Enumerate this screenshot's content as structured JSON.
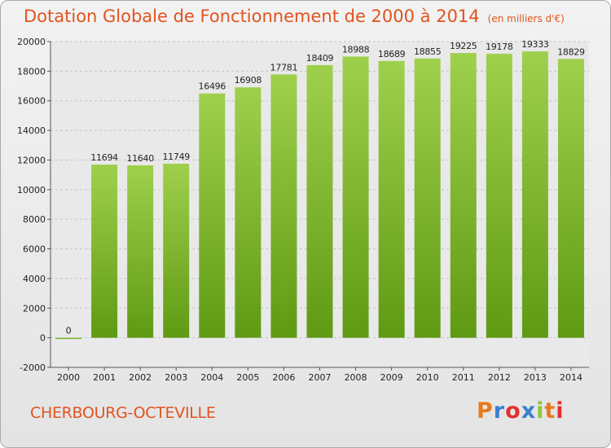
{
  "header": {
    "title": "Dotation Globale de Fonctionnement de 2000 à 2014",
    "unit": "(en milliers d'€)"
  },
  "footer": {
    "city": "CHERBOURG-OCTEVILLE",
    "logo": "Proxiti",
    "logo_colors": [
      "#e87a1e",
      "#3a7fd0",
      "#e22f2f",
      "#3a7fd0",
      "#8cc63f",
      "#e87a1e",
      "#e22f2f"
    ]
  },
  "colors": {
    "bar_top": "#9fd04d",
    "bar_bottom": "#5f9a13",
    "title": "#e2531f"
  },
  "chart_data": {
    "type": "bar",
    "title": "Dotation Globale de Fonctionnement de 2000 à 2014",
    "subtitle": "(en milliers d'€)",
    "xlabel": "",
    "ylabel": "",
    "categories": [
      "2000",
      "2001",
      "2002",
      "2003",
      "2004",
      "2005",
      "2006",
      "2007",
      "2008",
      "2009",
      "2010",
      "2011",
      "2012",
      "2013",
      "2014"
    ],
    "values": [
      0,
      11694,
      11640,
      11749,
      16496,
      16908,
      17781,
      18409,
      18988,
      18689,
      18855,
      19225,
      19178,
      19333,
      18829
    ],
    "value_labels": [
      "0",
      "11694",
      "11640",
      "11749",
      "16496",
      "16908",
      "17781",
      "18409",
      "18988",
      "18689",
      "18855",
      "19225",
      "19178",
      "19333",
      "18829"
    ],
    "yticks": [
      -2000,
      0,
      2000,
      4000,
      6000,
      8000,
      10000,
      12000,
      14000,
      16000,
      18000,
      20000
    ],
    "ytick_labels": [
      "-2000",
      "0",
      "2000",
      "4000",
      "6000",
      "8000",
      "10000",
      "12000",
      "14000",
      "16000",
      "18000",
      "20000"
    ],
    "ylim": [
      -2000,
      20000
    ],
    "grid": true
  }
}
